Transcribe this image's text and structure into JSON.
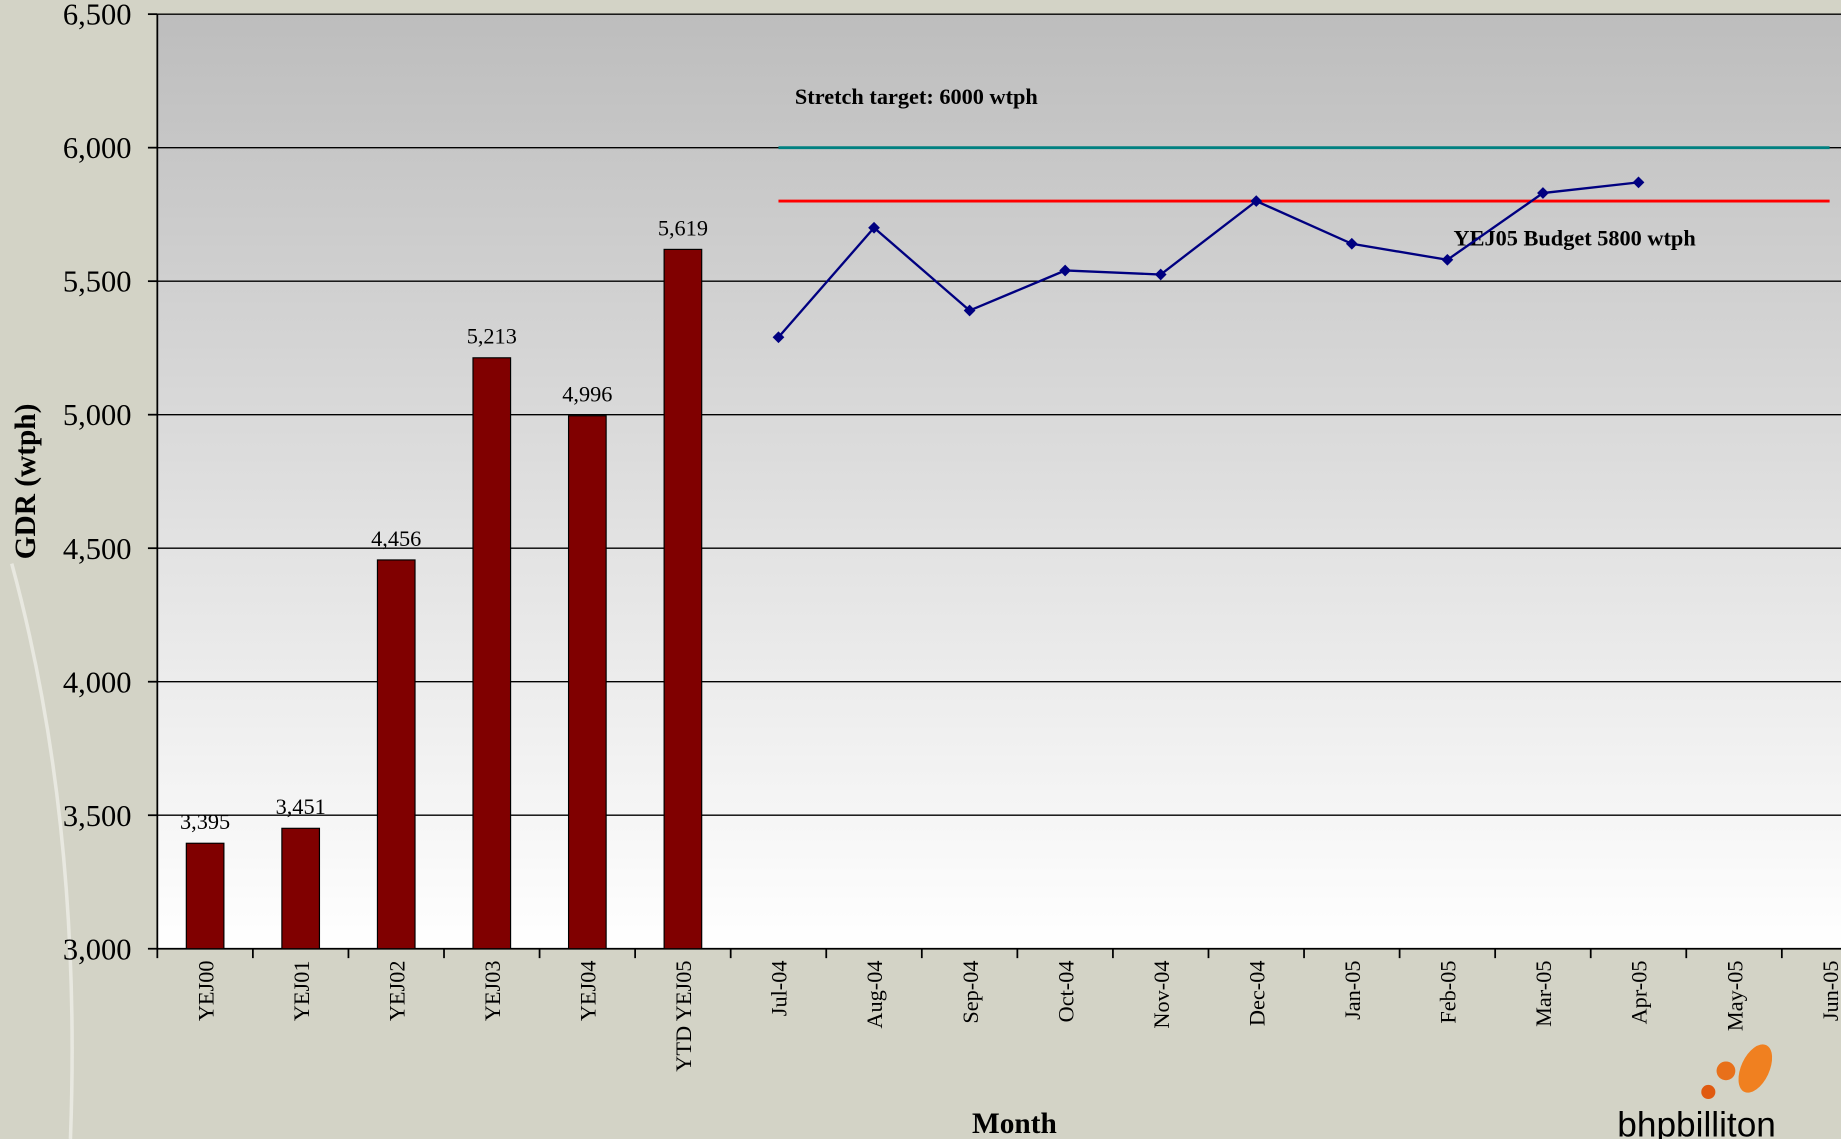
{
  "chart_data": {
    "type": "bar_line",
    "ylabel": "GDR (wtph)",
    "xlabel": "Month",
    "categories": [
      "YEJ00",
      "YEJ01",
      "YEJ02",
      "YEJ03",
      "YEJ04",
      "YTD YEJ05",
      "Jul-04",
      "Aug-04",
      "Sep-04",
      "Oct-04",
      "Nov-04",
      "Dec-04",
      "Jan-05",
      "Feb-05",
      "Mar-05",
      "Apr-05",
      "May-05",
      "Jun-05"
    ],
    "bars": {
      "color": "#800000",
      "values": [
        3395,
        3451,
        4456,
        5213,
        4996,
        5619,
        null,
        null,
        null,
        null,
        null,
        null,
        null,
        null,
        null,
        null,
        null,
        null
      ],
      "value_labels": [
        "3,395",
        "3,451",
        "4,456",
        "5,213",
        "4,996",
        "5,619",
        null,
        null,
        null,
        null,
        null,
        null,
        null,
        null,
        null,
        null,
        null,
        null
      ]
    },
    "line": {
      "color": "#000080",
      "values": [
        null,
        null,
        null,
        null,
        null,
        null,
        5290,
        5700,
        5390,
        5540,
        5525,
        5800,
        5640,
        5580,
        5830,
        5870,
        null,
        null
      ]
    },
    "reference_lines": [
      {
        "value": 6000,
        "label": "Stretch target: 6000 wtph",
        "color": "#008080"
      },
      {
        "value": 5800,
        "label": "YEJ05 Budget 5800 wtph",
        "color": "#ff0000"
      }
    ],
    "ylim": [
      3000,
      6500
    ],
    "yticks": [
      {
        "value": 3000,
        "label": "3,000"
      },
      {
        "value": 3500,
        "label": "3,500"
      },
      {
        "value": 4000,
        "label": "4,000"
      },
      {
        "value": 4500,
        "label": "4,500"
      },
      {
        "value": 5000,
        "label": "5,000"
      },
      {
        "value": 5500,
        "label": "5,500"
      },
      {
        "value": 6000,
        "label": "6,000"
      },
      {
        "value": 6500,
        "label": "6,500"
      }
    ],
    "grid": true,
    "logo_text": "bhpbilliton"
  }
}
